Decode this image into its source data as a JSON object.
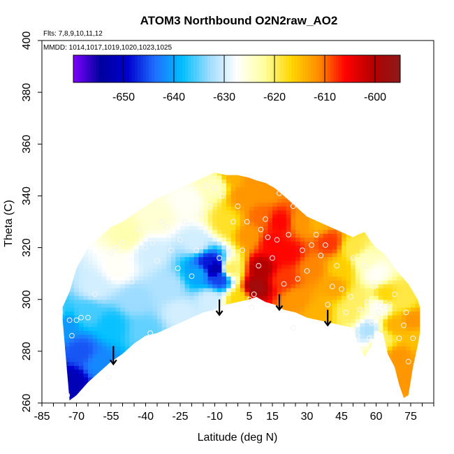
{
  "chart_data": {
    "type": "heatmap",
    "title": "ATOM3 Northbound O2N2raw_AO2",
    "notes": {
      "flights": "Flts: 7,8,9,10,11,12",
      "mmdd": "MMDD: 1014,1017,1019,1020,1023,1025"
    },
    "xlabel": "Latitude (deg N)",
    "ylabel": "Theta (C)",
    "xlim": [
      -85,
      85
    ],
    "ylim": [
      260,
      400
    ],
    "xticks": [
      -85,
      -70,
      -55,
      -40,
      -25,
      -10,
      5,
      15,
      30,
      45,
      60,
      75
    ],
    "xtick_labels": [
      "-85",
      "-70",
      "-55",
      "-40",
      "-25",
      "-10",
      "5",
      "15",
      "30",
      "45",
      "60",
      "75"
    ],
    "yticks": [
      260,
      280,
      300,
      320,
      340,
      360,
      380,
      400
    ],
    "ytick_labels": [
      "260",
      "280",
      "300",
      "320",
      "340",
      "360",
      "380",
      "400"
    ],
    "colorbar": {
      "range": [
        -660,
        -595
      ],
      "ticks": [
        -650,
        -640,
        -630,
        -620,
        -610,
        -600
      ],
      "tick_labels": [
        "-650",
        "-640",
        "-630",
        "-620",
        "-610",
        "-600"
      ],
      "palette": [
        "#7f00ff",
        "#00009e",
        "#0000cd",
        "#1e6fff",
        "#00bfff",
        "#9fdcff",
        "#ffffff",
        "#ffffa0",
        "#ffd700",
        "#ff8c00",
        "#ff0000",
        "#b40000",
        "#8b1a1a"
      ]
    },
    "data_envelope": {
      "lat": [
        -76,
        -73,
        -70,
        -65,
        -60,
        -55,
        -50,
        -45,
        -40,
        -35,
        -30,
        -25,
        -20,
        -15,
        -10,
        -5,
        0,
        5,
        8,
        12,
        16,
        20,
        25,
        30,
        35,
        40,
        45,
        50,
        52,
        55,
        58,
        60,
        63,
        65,
        68,
        70,
        72,
        74,
        76,
        78,
        79
      ],
      "theta_bottom": [
        292,
        261,
        263,
        268,
        272,
        276,
        279,
        283,
        286,
        287,
        289,
        291,
        293,
        295,
        296,
        298,
        299,
        300,
        301,
        299,
        298,
        296,
        295,
        293,
        292,
        291,
        290,
        289,
        283,
        278,
        282,
        288,
        287,
        279,
        274,
        267,
        262,
        263,
        274,
        282,
        287
      ],
      "theta_top": [
        297,
        303,
        312,
        320,
        324,
        328,
        330,
        333,
        336,
        339,
        341,
        343,
        345,
        347,
        349,
        348,
        348,
        347,
        346,
        345,
        343,
        340,
        336,
        332,
        330,
        328,
        326,
        324,
        325,
        326,
        322,
        320,
        318,
        316,
        312,
        310,
        308,
        306,
        303,
        300,
        297
      ]
    },
    "field_nodes": [
      {
        "lat": -75,
        "theta": 290,
        "value": -641
      },
      {
        "lat": -72,
        "theta": 268,
        "value": -652
      },
      {
        "lat": -68,
        "theta": 280,
        "value": -645
      },
      {
        "lat": -65,
        "theta": 295,
        "value": -636
      },
      {
        "lat": -62,
        "theta": 305,
        "value": -630
      },
      {
        "lat": -60,
        "theta": 275,
        "value": -642
      },
      {
        "lat": -55,
        "theta": 290,
        "value": -638
      },
      {
        "lat": -52,
        "theta": 312,
        "value": -627
      },
      {
        "lat": -48,
        "theta": 325,
        "value": -623
      },
      {
        "lat": -45,
        "theta": 300,
        "value": -633
      },
      {
        "lat": -40,
        "theta": 288,
        "value": -635
      },
      {
        "lat": -38,
        "theta": 318,
        "value": -630
      },
      {
        "lat": -35,
        "theta": 332,
        "value": -625
      },
      {
        "lat": -30,
        "theta": 305,
        "value": -632
      },
      {
        "lat": -25,
        "theta": 295,
        "value": -630
      },
      {
        "lat": -22,
        "theta": 338,
        "value": -627
      },
      {
        "lat": -18,
        "theta": 322,
        "value": -630
      },
      {
        "lat": -17,
        "theta": 310,
        "value": -640
      },
      {
        "lat": -13,
        "theta": 314,
        "value": -648
      },
      {
        "lat": -10,
        "theta": 312,
        "value": -653
      },
      {
        "lat": -8,
        "theta": 308,
        "value": -646
      },
      {
        "lat": -12,
        "theta": 300,
        "value": -630
      },
      {
        "lat": -10,
        "theta": 344,
        "value": -624
      },
      {
        "lat": -5,
        "theta": 330,
        "value": -618
      },
      {
        "lat": -3,
        "theta": 312,
        "value": -620
      },
      {
        "lat": 0,
        "theta": 300,
        "value": -617
      },
      {
        "lat": 2,
        "theta": 340,
        "value": -612
      },
      {
        "lat": 5,
        "theta": 325,
        "value": -612
      },
      {
        "lat": 8,
        "theta": 305,
        "value": -598
      },
      {
        "lat": 10,
        "theta": 312,
        "value": -600
      },
      {
        "lat": 10,
        "theta": 332,
        "value": -610
      },
      {
        "lat": 12,
        "theta": 342,
        "value": -612
      },
      {
        "lat": 15,
        "theta": 322,
        "value": -606
      },
      {
        "lat": 18,
        "theta": 330,
        "value": -606
      },
      {
        "lat": 20,
        "theta": 308,
        "value": -608
      },
      {
        "lat": 22,
        "theta": 318,
        "value": -606
      },
      {
        "lat": 25,
        "theta": 300,
        "value": -612
      },
      {
        "lat": 28,
        "theta": 330,
        "value": -612
      },
      {
        "lat": 32,
        "theta": 312,
        "value": -611
      },
      {
        "lat": 35,
        "theta": 295,
        "value": -614
      },
      {
        "lat": 40,
        "theta": 322,
        "value": -608
      },
      {
        "lat": 42,
        "theta": 305,
        "value": -613
      },
      {
        "lat": 45,
        "theta": 312,
        "value": -616
      },
      {
        "lat": 48,
        "theta": 295,
        "value": -620
      },
      {
        "lat": 50,
        "theta": 320,
        "value": -619
      },
      {
        "lat": 52,
        "theta": 300,
        "value": -620
      },
      {
        "lat": 55,
        "theta": 315,
        "value": -624
      },
      {
        "lat": 57,
        "theta": 288,
        "value": -632
      },
      {
        "lat": 60,
        "theta": 310,
        "value": -627
      },
      {
        "lat": 61,
        "theta": 297,
        "value": -627
      },
      {
        "lat": 63,
        "theta": 285,
        "value": -620
      },
      {
        "lat": 64,
        "theta": 302,
        "value": -617
      },
      {
        "lat": 68,
        "theta": 290,
        "value": -614
      },
      {
        "lat": 70,
        "theta": 278,
        "value": -612
      },
      {
        "lat": 72,
        "theta": 300,
        "value": -619
      },
      {
        "lat": 74,
        "theta": 270,
        "value": -612
      },
      {
        "lat": 76,
        "theta": 292,
        "value": -612
      },
      {
        "lat": 78,
        "theta": 285,
        "value": -615
      },
      {
        "lat": -80,
        "theta": 295,
        "value": -636
      },
      {
        "lat": -2,
        "theta": 348,
        "value": -614
      },
      {
        "lat": 6,
        "theta": 347,
        "value": -612
      },
      {
        "lat": 35,
        "theta": 330,
        "value": -614
      }
    ],
    "observation_points": [
      [
        -77,
        295
      ],
      [
        -73,
        292
      ],
      [
        -72,
        286
      ],
      [
        -70,
        292
      ],
      [
        -68,
        293
      ],
      [
        -65,
        293
      ],
      [
        -62,
        302
      ],
      [
        -56,
        270
      ],
      [
        -74,
        263
      ],
      [
        -55,
        318
      ],
      [
        -53,
        320
      ],
      [
        -50,
        322
      ],
      [
        -46,
        307
      ],
      [
        -43,
        327
      ],
      [
        -40,
        320
      ],
      [
        -38,
        287
      ],
      [
        -37,
        322
      ],
      [
        -35,
        315
      ],
      [
        -33,
        330
      ],
      [
        -31,
        328
      ],
      [
        -29,
        319
      ],
      [
        -26,
        312
      ],
      [
        -25,
        323
      ],
      [
        -23,
        330
      ],
      [
        -20,
        309
      ],
      [
        -18,
        319
      ],
      [
        -16,
        333
      ],
      [
        -14,
        344
      ],
      [
        -12,
        336
      ],
      [
        -10,
        343
      ],
      [
        -8,
        316
      ],
      [
        -7,
        340
      ],
      [
        -4,
        319
      ],
      [
        -2,
        330
      ],
      [
        0,
        336
      ],
      [
        2,
        319
      ],
      [
        4,
        330
      ],
      [
        5,
        300
      ],
      [
        7,
        302
      ],
      [
        9,
        313
      ],
      [
        10,
        327
      ],
      [
        12,
        331
      ],
      [
        13,
        324
      ],
      [
        15,
        316
      ],
      [
        17,
        323
      ],
      [
        18,
        341
      ],
      [
        20,
        306
      ],
      [
        22,
        325
      ],
      [
        24,
        336
      ],
      [
        26,
        308
      ],
      [
        28,
        319
      ],
      [
        30,
        311
      ],
      [
        32,
        321
      ],
      [
        34,
        325
      ],
      [
        36,
        317
      ],
      [
        38,
        321
      ],
      [
        39,
        298
      ],
      [
        41,
        305
      ],
      [
        43,
        313
      ],
      [
        45,
        304
      ],
      [
        47,
        295
      ],
      [
        49,
        301
      ],
      [
        50,
        316
      ],
      [
        52,
        286
      ],
      [
        53,
        296
      ],
      [
        55,
        313
      ],
      [
        56,
        299
      ],
      [
        57,
        285
      ],
      [
        58,
        291
      ],
      [
        59,
        305
      ],
      [
        61,
        295
      ],
      [
        62,
        298
      ],
      [
        64,
        297
      ],
      [
        66,
        298
      ],
      [
        68,
        302
      ],
      [
        70,
        285
      ],
      [
        72,
        290
      ],
      [
        73,
        295
      ],
      [
        74,
        276
      ],
      [
        76,
        285
      ],
      [
        -6,
        297
      ],
      [
        6,
        297
      ],
      [
        24,
        289
      ]
    ],
    "arrows": [
      {
        "lat": -54,
        "theta_top": 282,
        "theta_tip": 275
      },
      {
        "lat": -8,
        "theta_top": 300,
        "theta_tip": 294
      },
      {
        "lat": 18,
        "theta_top": 302,
        "theta_tip": 296
      },
      {
        "lat": 39,
        "theta_top": 296,
        "theta_tip": 290
      }
    ]
  }
}
